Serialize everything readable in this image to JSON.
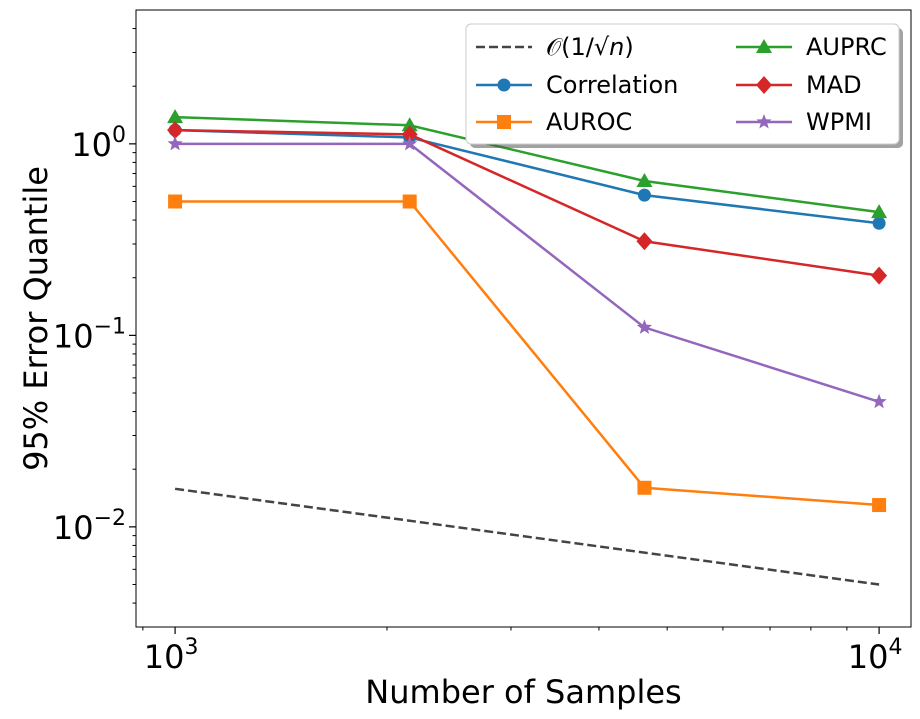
{
  "chart_data": {
    "type": "line",
    "xscale": "log",
    "yscale": "log",
    "xlabel": "Number of Samples",
    "ylabel": "95% Error Quantile",
    "xlim": [
      880,
      11100
    ],
    "ylim": [
      0.003,
      5.0
    ],
    "x_ticks": [
      {
        "value": 1000,
        "base": "10",
        "exp": "3"
      },
      {
        "value": 10000,
        "base": "10",
        "exp": "4"
      }
    ],
    "y_ticks": [
      {
        "value": 0.01,
        "base": "10",
        "exp": "−2"
      },
      {
        "value": 0.1,
        "base": "10",
        "exp": "−1"
      },
      {
        "value": 1,
        "base": "10",
        "exp": "0"
      }
    ],
    "x": [
      1000,
      2154,
      4642,
      10000
    ],
    "series": [
      {
        "name": "Correlation",
        "color": "#1f77b4",
        "marker": "circle",
        "values": [
          1.18,
          1.08,
          0.54,
          0.385
        ]
      },
      {
        "name": "AUROC",
        "color": "#ff7f0e",
        "marker": "square",
        "values": [
          0.5,
          0.5,
          0.016,
          0.013
        ]
      },
      {
        "name": "AUPRC",
        "color": "#2ca02c",
        "marker": "triangle",
        "values": [
          1.38,
          1.25,
          0.64,
          0.44
        ]
      },
      {
        "name": "MAD",
        "color": "#d62728",
        "marker": "diamond",
        "values": [
          1.18,
          1.12,
          0.31,
          0.205
        ]
      },
      {
        "name": "WPMI",
        "color": "#9467bd",
        "marker": "star",
        "values": [
          1.0,
          1.0,
          0.11,
          0.045
        ]
      }
    ],
    "reference": {
      "name": "𝒪(1/√n)",
      "name_prefix": "𝒪(1/√",
      "name_var": "n",
      "name_suffix": ")",
      "color": "#444444",
      "style": "dashed",
      "x": [
        1000,
        10000
      ],
      "values": [
        0.0158,
        0.005
      ]
    },
    "legend": {
      "placement": "top-right",
      "columns": 2,
      "order": [
        "reference",
        "Correlation",
        "AUROC",
        "AUPRC",
        "MAD",
        "WPMI"
      ]
    }
  }
}
